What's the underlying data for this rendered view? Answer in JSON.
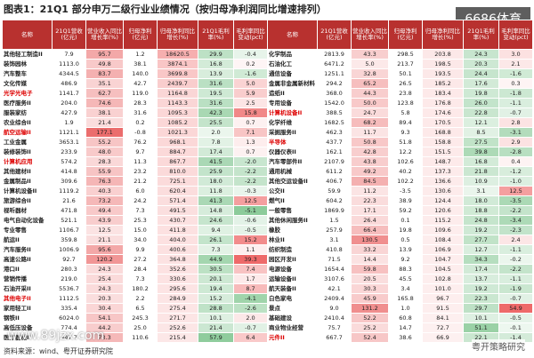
{
  "header": {
    "title": "图表1：21Q1 部分申万二级行业业绩情况（按归母净利润同比增速排列）",
    "badge": "6686体育"
  },
  "table": {
    "headers": [
      "名称",
      "21Q1营收(亿元)",
      "营业收入同比增长率(%)",
      "归母净利(亿元)",
      "归母净利同比增长(%)",
      "21Q1毛利率(%)",
      "毛利率同比变动(pct)"
    ],
    "left": [
      [
        "其他轻工制造II",
        "7.9",
        "95.7",
        "1.2",
        "18620.5",
        "29.9",
        "-0.4"
      ],
      [
        "装饰园林",
        "1113.0",
        "49.8",
        "38.1",
        "3874.1",
        "16.8",
        "0.2"
      ],
      [
        "汽车整车",
        "4344.5",
        "83.7",
        "140.0",
        "3699.8",
        "13.9",
        "-1.6"
      ],
      [
        "文化传媒",
        "486.9",
        "35.1",
        "42.7",
        "2439.7",
        "31.6",
        "5.0"
      ],
      [
        "光学光电子",
        "1141.7",
        "62.7",
        "119.0",
        "1164.8",
        "19.5",
        "5.9"
      ],
      [
        "医疗服务II",
        "204.0",
        "74.6",
        "28.3",
        "1143.3",
        "31.6",
        "2.5"
      ],
      [
        "服装家纺",
        "427.9",
        "38.1",
        "31.6",
        "1095.3",
        "42.3",
        "15.8"
      ],
      [
        "农业综合II",
        "1.9",
        "21.4",
        "0.2",
        "1085.2",
        "25.5",
        "0.7"
      ],
      [
        "航空运输II",
        "1121.1",
        "177.1",
        "-0.8",
        "1021.3",
        "2.0",
        "7.1"
      ],
      [
        "工业金属",
        "3653.1",
        "55.2",
        "76.2",
        "968.1",
        "7.8",
        "1.3"
      ],
      [
        "装修装饰II",
        "233.9",
        "48.0",
        "9.7",
        "884.7",
        "17.4",
        "0.7"
      ],
      [
        "计算机应用",
        "574.2",
        "28.3",
        "11.3",
        "867.7",
        "41.5",
        "-2.0"
      ],
      [
        "其他建材II",
        "414.8",
        "55.9",
        "23.2",
        "810.0",
        "25.9",
        "-2.2"
      ],
      [
        "金属制品II",
        "309.6",
        "76.3",
        "21.2",
        "725.1",
        "18.0",
        "-2.2"
      ],
      [
        "计算机设备II",
        "1119.2",
        "40.3",
        "6.0",
        "620.4",
        "11.8",
        "-0.3"
      ],
      [
        "旅游综合II",
        "21.6",
        "73.2",
        "24.2",
        "571.4",
        "41.3",
        "12.5"
      ],
      [
        "视听器材",
        "471.8",
        "49.4",
        "7.3",
        "491.5",
        "14.8",
        "-5.1"
      ],
      [
        "电气自动化设备",
        "521.1",
        "43.9",
        "25.3",
        "430.7",
        "24.6",
        "-0.6"
      ],
      [
        "专业零售",
        "1106.7",
        "12.5",
        "15.0",
        "411.8",
        "9.4",
        "-0.5"
      ],
      [
        "航运II",
        "359.8",
        "21.1",
        "34.0",
        "404.0",
        "26.1",
        "15.2"
      ],
      [
        "汽车服务II",
        "1006.9",
        "95.6",
        "9.9",
        "400.6",
        "7.3",
        "1.1"
      ],
      [
        "高速公路II",
        "92.7",
        "120.2",
        "27.2",
        "364.8",
        "44.9",
        "39.3"
      ],
      [
        "港口II",
        "280.3",
        "24.3",
        "28.4",
        "352.6",
        "30.5",
        "7.4"
      ],
      [
        "营销传播",
        "219.0",
        "25.4",
        "7.3",
        "330.6",
        "20.1",
        "1.7"
      ],
      [
        "石油开采II",
        "5536.7",
        "24.3",
        "180.2",
        "295.6",
        "19.4",
        "8.7"
      ],
      [
        "其他电子II",
        "1112.5",
        "20.3",
        "2.2",
        "284.9",
        "15.2",
        "-4.1"
      ],
      [
        "家用轻工II",
        "335.4",
        "30.4",
        "6.5",
        "275.4",
        "28.8",
        "-2.6"
      ],
      [
        "钢铁II",
        "6024.0",
        "54.1",
        "245.3",
        "271.7",
        "10.1",
        "2.0"
      ],
      [
        "高低压设备",
        "774.4",
        "44.2",
        "25.0",
        "252.6",
        "21.4",
        "-0.7"
      ],
      [
        "医疗器械II",
        "447.7",
        "73.3",
        "110.6",
        "215.4",
        "57.9",
        "6.4"
      ]
    ],
    "right": [
      [
        "化学制品",
        "2813.9",
        "43.3",
        "298.5",
        "203.8",
        "24.3",
        "3.0"
      ],
      [
        "石油化工",
        "6471.2",
        "5.0",
        "213.7",
        "198.5",
        "20.3",
        "2.1"
      ],
      [
        "通信设备",
        "1251.1",
        "32.8",
        "50.1",
        "193.5",
        "24.4",
        "-1.6"
      ],
      [
        "金属非金属新材料",
        "294.2",
        "65.2",
        "26.5",
        "185.2",
        "17.6",
        "0.3"
      ],
      [
        "造纸II",
        "368.0",
        "44.3",
        "23.8",
        "183.4",
        "19.8",
        "-1.8"
      ],
      [
        "专用设备",
        "1542.0",
        "50.0",
        "123.8",
        "176.8",
        "26.0",
        "-1.1"
      ],
      [
        "计算机设备II",
        "388.5",
        "24.7",
        "5.8",
        "174.6",
        "22.8",
        "-0.7"
      ],
      [
        "化学纤维",
        "1682.5",
        "68.2",
        "89.4",
        "170.5",
        "12.1",
        "2.8"
      ],
      [
        "采掘服务II",
        "462.3",
        "11.7",
        "9.3",
        "168.8",
        "8.5",
        "-3.1"
      ],
      [
        "半导体",
        "437.7",
        "50.8",
        "51.8",
        "158.8",
        "27.5",
        "2.9"
      ],
      [
        "仪器仪表II",
        "162.1",
        "42.8",
        "12.2",
        "151.5",
        "39.8",
        "-2.8"
      ],
      [
        "汽车零部件II",
        "2107.9",
        "43.8",
        "102.6",
        "148.7",
        "16.8",
        "0.4"
      ],
      [
        "通用机械",
        "611.2",
        "49.2",
        "40.2",
        "137.3",
        "21.8",
        "-1.2"
      ],
      [
        "其他交运设备II",
        "406.7",
        "84.5",
        "102.2",
        "136.6",
        "10.9",
        "-1.0"
      ],
      [
        "公交II",
        "59.9",
        "11.2",
        "-3.5",
        "130.6",
        "3.1",
        "12.5"
      ],
      [
        "燃气II",
        "604.2",
        "22.3",
        "38.9",
        "124.4",
        "18.0",
        "-3.5"
      ],
      [
        "一般零售",
        "1869.9",
        "17.1",
        "59.2",
        "120.6",
        "18.8",
        "-2.2"
      ],
      [
        "其他休闲服务II",
        "1.5",
        "26.4",
        "0.1",
        "115.2",
        "24.8",
        "-3.4"
      ],
      [
        "橡胶",
        "257.9",
        "66.4",
        "19.8",
        "109.6",
        "19.2",
        "-2.3"
      ],
      [
        "林业II",
        "3.1",
        "130.5",
        "0.5",
        "108.4",
        "27.7",
        "2.4"
      ],
      [
        "纺织制造",
        "410.8",
        "33.2",
        "13.9",
        "106.9",
        "12.7",
        "-1.1"
      ],
      [
        "园区开发II",
        "71.5",
        "14.4",
        "9.2",
        "104.7",
        "34.3",
        "-0.2"
      ],
      [
        "电源设备",
        "1654.4",
        "59.8",
        "88.3",
        "104.5",
        "17.4",
        "-2.2"
      ],
      [
        "运输设备II",
        "3107.6",
        "20.5",
        "45.5",
        "102.8",
        "13.7",
        "-1.1"
      ],
      [
        "航天装备II",
        "42.1",
        "30.3",
        "3.4",
        "101.0",
        "19.2",
        "-1.9"
      ],
      [
        "白色家电",
        "2409.4",
        "45.9",
        "165.8",
        "96.7",
        "22.3",
        "-0.7"
      ],
      [
        "景点",
        "9.0",
        "131.2",
        "1.0",
        "91.5",
        "29.7",
        "54.9"
      ],
      [
        "基础建设",
        "2410.4",
        "52.2",
        "60.8",
        "84.1",
        "10.1",
        "-0.5"
      ],
      [
        "商业物业经营",
        "75.7",
        "25.2",
        "14.7",
        "72.7",
        "51.1",
        "-0.1"
      ],
      [
        "元件II",
        "667.7",
        "52.4",
        "38.6",
        "66.9",
        "22.1",
        "-1.4"
      ]
    ]
  },
  "footer": {
    "source": "资料来源：wind、粤开证券研究院",
    "site": "www.89jzx.com",
    "wechat": "粤开策略研究"
  }
}
